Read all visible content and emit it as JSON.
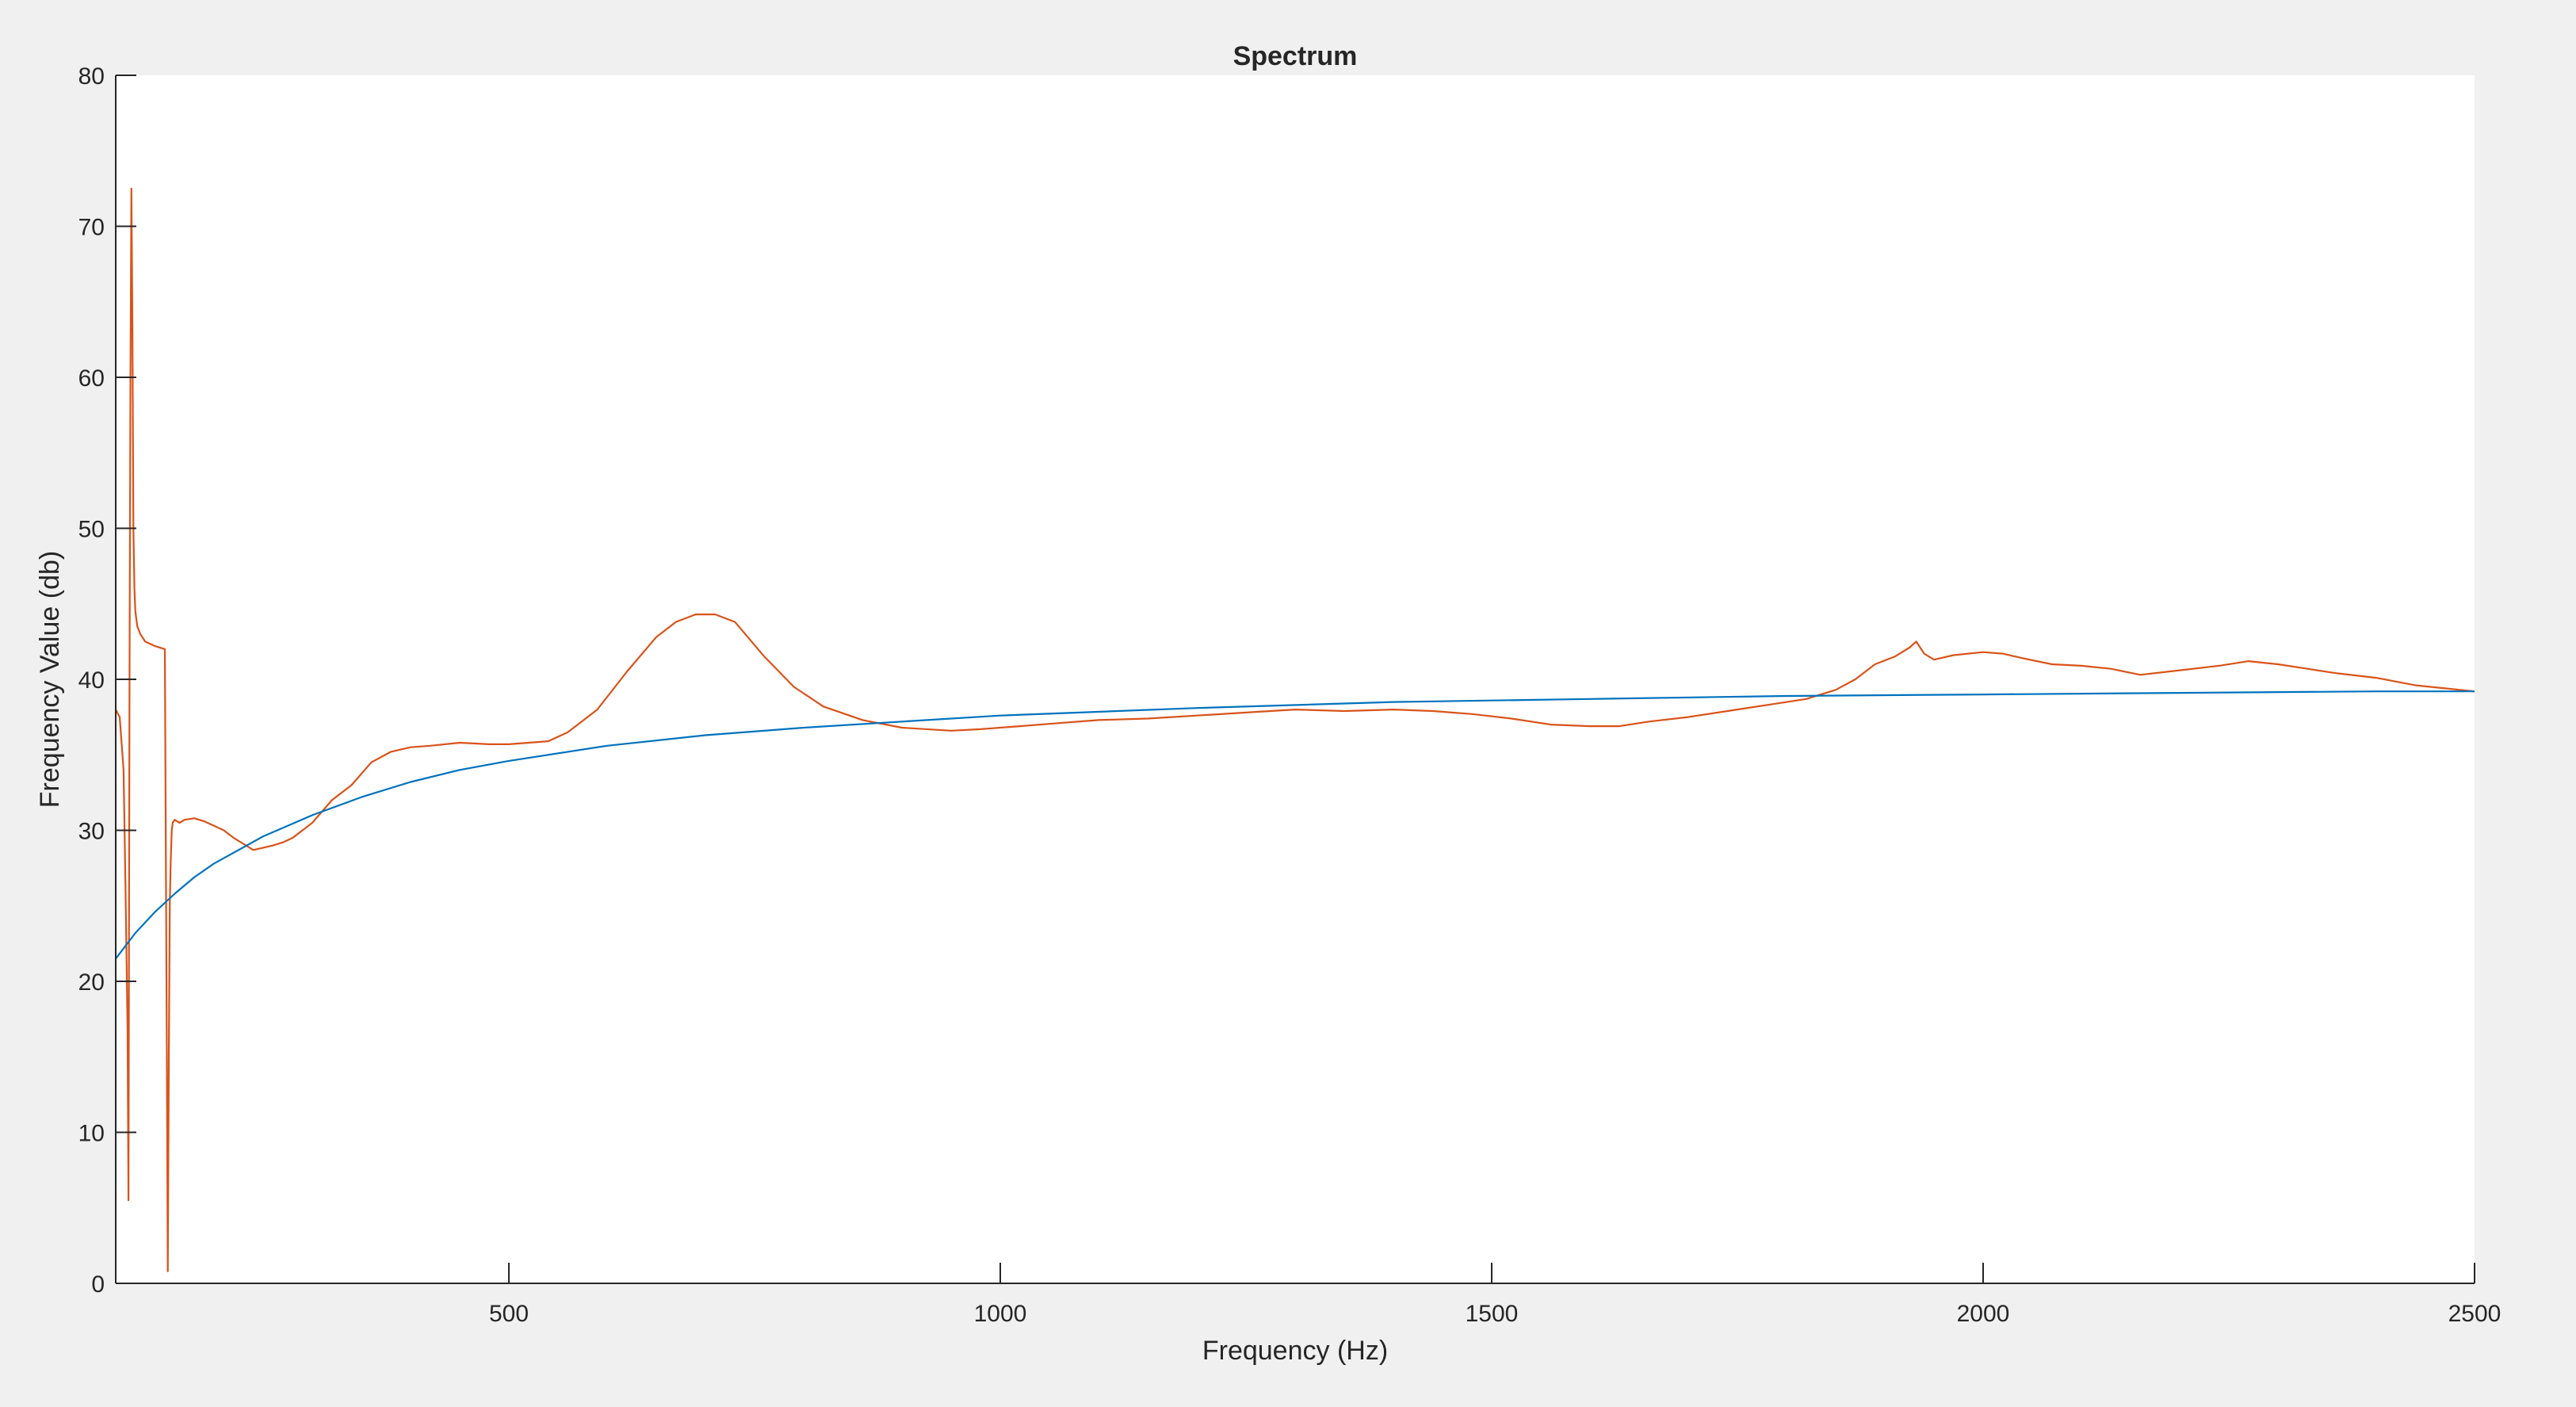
{
  "chart_data": {
    "type": "line",
    "title": "Spectrum",
    "xlabel": "Frequency (Hz)",
    "ylabel": "Frequency Value (db)",
    "xlim": [
      100,
      2500
    ],
    "ylim": [
      0,
      80
    ],
    "xticks": [
      500,
      1000,
      1500,
      2000,
      2500
    ],
    "yticks": [
      0,
      10,
      20,
      30,
      40,
      50,
      60,
      70,
      80
    ],
    "grid": false,
    "legend": "none",
    "colors": {
      "background": "#f0f0f0",
      "axes_bg": "#ffffff",
      "axis": "#262626"
    },
    "series": [
      {
        "color": "#D95319",
        "x": [
          100,
          104,
          108,
          110,
          112,
          113,
          114,
          115,
          116,
          117,
          118,
          119,
          120,
          121,
          122,
          125,
          130,
          140,
          150,
          152,
          153,
          154,
          155,
          156,
          157,
          158,
          160,
          165,
          170,
          180,
          190,
          200,
          210,
          220,
          240,
          260,
          270,
          280,
          300,
          320,
          340,
          360,
          380,
          400,
          420,
          450,
          480,
          500,
          540,
          560,
          590,
          620,
          650,
          670,
          690,
          710,
          730,
          760,
          790,
          820,
          860,
          900,
          950,
          980,
          1020,
          1060,
          1100,
          1150,
          1200,
          1250,
          1300,
          1350,
          1400,
          1440,
          1480,
          1520,
          1560,
          1600,
          1630,
          1660,
          1700,
          1740,
          1780,
          1820,
          1850,
          1870,
          1890,
          1910,
          1925,
          1932,
          1940,
          1950,
          1970,
          2000,
          2020,
          2040,
          2070,
          2100,
          2130,
          2160,
          2200,
          2240,
          2270,
          2300,
          2330,
          2360,
          2400,
          2440,
          2470,
          2500
        ],
        "y": [
          38,
          37.5,
          34,
          26,
          17,
          5.5,
          40,
          60,
          72.5,
          63,
          50,
          46,
          44.5,
          44,
          43.5,
          43,
          42.5,
          42.2,
          42,
          15,
          0.8,
          15,
          25,
          28,
          30,
          30.5,
          30.7,
          30.5,
          30.7,
          30.8,
          30.6,
          30.3,
          30,
          29.5,
          28.7,
          29,
          29.2,
          29.5,
          30.5,
          32,
          33,
          34.5,
          35.2,
          35.5,
          35.6,
          35.8,
          35.7,
          35.7,
          35.9,
          36.5,
          38,
          40.5,
          42.8,
          43.8,
          44.3,
          44.3,
          43.8,
          41.5,
          39.5,
          38.2,
          37.3,
          36.8,
          36.6,
          36.7,
          36.9,
          37.1,
          37.3,
          37.4,
          37.6,
          37.8,
          38,
          37.9,
          38,
          37.9,
          37.7,
          37.4,
          37,
          36.9,
          36.9,
          37.2,
          37.5,
          37.9,
          38.3,
          38.7,
          39.3,
          40,
          41,
          41.5,
          42.1,
          42.5,
          41.7,
          41.3,
          41.6,
          41.8,
          41.7,
          41.4,
          41,
          40.9,
          40.7,
          40.3,
          40.6,
          40.9,
          41.2,
          41,
          40.7,
          40.4,
          40.1,
          39.6,
          39.4,
          39.2
        ]
      },
      {
        "color": "#0072BD",
        "x": [
          100,
          120,
          140,
          160,
          180,
          200,
          250,
          300,
          350,
          400,
          450,
          500,
          600,
          700,
          800,
          900,
          1000,
          1200,
          1400,
          1600,
          1800,
          2000,
          2200,
          2400,
          2500
        ],
        "y": [
          21.5,
          23.2,
          24.6,
          25.8,
          26.9,
          27.8,
          29.6,
          31,
          32.2,
          33.2,
          34,
          34.6,
          35.6,
          36.3,
          36.8,
          37.2,
          37.6,
          38.1,
          38.5,
          38.7,
          38.9,
          39,
          39.1,
          39.2,
          39.2
        ]
      }
    ]
  }
}
